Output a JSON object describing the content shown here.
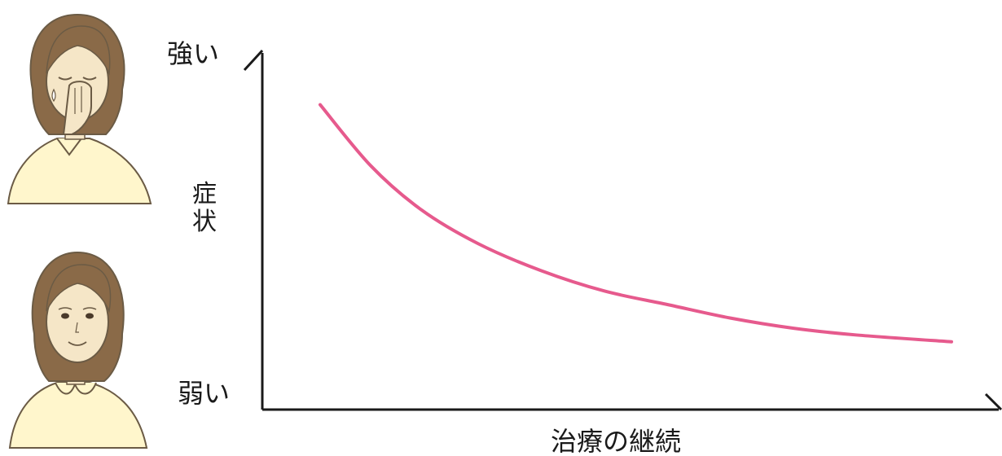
{
  "chart_data": {
    "type": "line",
    "title": "",
    "xlabel": "治療の継続",
    "ylabel": "症状",
    "y_high_label": "強い",
    "y_low_label": "弱い",
    "x_axis_has_ticks": false,
    "y_axis_has_ticks": false,
    "grid": false,
    "legend": "none",
    "xlim": [
      0,
      1
    ],
    "ylim": [
      0,
      1
    ],
    "series": [
      {
        "x": [
          0,
          0.08,
          0.16,
          0.25,
          0.35,
          0.45,
          0.55,
          0.65,
          0.75,
          0.85,
          1.0
        ],
        "values": [
          0.84,
          0.66,
          0.53,
          0.43,
          0.35,
          0.29,
          0.25,
          0.21,
          0.18,
          0.16,
          0.14
        ]
      }
    ],
    "colors": {
      "curve": "#e65a8d",
      "axis": "#1a1a1a"
    }
  },
  "illustrations": {
    "top_icon": "woman-covering-nose-icon",
    "bottom_icon": "woman-smiling-icon",
    "colors": {
      "hair": "#8a6a48",
      "skin": "#f5e6c7",
      "shirt": "#fff6cc",
      "outline": "#6b5b45"
    }
  }
}
